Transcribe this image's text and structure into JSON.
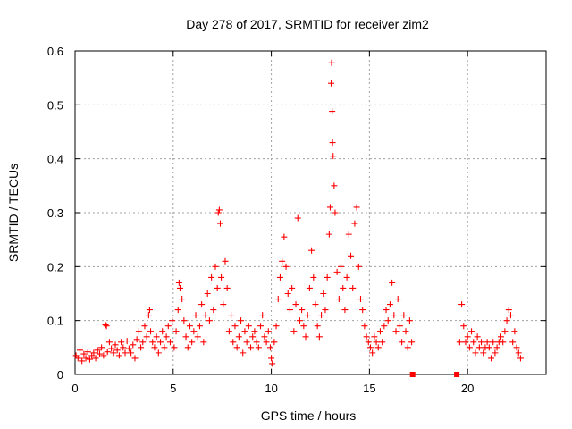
{
  "chart_data": {
    "type": "scatter",
    "title": "Day 278 of 2017, SRMTID for receiver zim2",
    "xlabel": "GPS time / hours",
    "ylabel": "SRMTID / TECUs",
    "xlim": [
      0,
      24
    ],
    "ylim": [
      0,
      0.6
    ],
    "grid": true,
    "marker": "plus",
    "color": "#ff0000",
    "x_ticks": [
      {
        "value": 0,
        "label": "0"
      },
      {
        "value": 5,
        "label": "5"
      },
      {
        "value": 10,
        "label": "10"
      },
      {
        "value": 15,
        "label": "15"
      },
      {
        "value": 20,
        "label": "20"
      }
    ],
    "y_ticks": [
      {
        "value": 0,
        "label": "0"
      },
      {
        "value": 0.1,
        "label": "0.1"
      },
      {
        "value": 0.2,
        "label": "0.2"
      },
      {
        "value": 0.3,
        "label": "0.3"
      },
      {
        "value": 0.4,
        "label": "0.4"
      },
      {
        "value": 0.5,
        "label": "0.5"
      },
      {
        "value": 0.6,
        "label": "0.6"
      }
    ],
    "series": [
      {
        "name": "SRMTID",
        "points": [
          [
            0.05,
            0.035
          ],
          [
            0.15,
            0.03
          ],
          [
            0.25,
            0.045
          ],
          [
            0.35,
            0.025
          ],
          [
            0.45,
            0.038
          ],
          [
            0.55,
            0.03
          ],
          [
            0.65,
            0.042
          ],
          [
            0.75,
            0.028
          ],
          [
            0.85,
            0.035
          ],
          [
            0.95,
            0.04
          ],
          [
            1.05,
            0.03
          ],
          [
            1.15,
            0.045
          ],
          [
            1.25,
            0.038
          ],
          [
            1.35,
            0.05
          ],
          [
            1.45,
            0.035
          ],
          [
            1.55,
            0.092
          ],
          [
            1.6,
            0.09
          ],
          [
            1.65,
            0.042
          ],
          [
            1.75,
            0.06
          ],
          [
            1.85,
            0.048
          ],
          [
            1.95,
            0.04
          ],
          [
            2.05,
            0.055
          ],
          [
            2.15,
            0.045
          ],
          [
            2.25,
            0.035
          ],
          [
            2.35,
            0.06
          ],
          [
            2.45,
            0.05
          ],
          [
            2.55,
            0.04
          ],
          [
            2.65,
            0.062
          ],
          [
            2.75,
            0.048
          ],
          [
            2.85,
            0.04
          ],
          [
            2.95,
            0.055
          ],
          [
            3.05,
            0.03
          ],
          [
            3.15,
            0.065
          ],
          [
            3.25,
            0.08
          ],
          [
            3.35,
            0.05
          ],
          [
            3.45,
            0.06
          ],
          [
            3.55,
            0.09
          ],
          [
            3.65,
            0.07
          ],
          [
            3.75,
            0.11
          ],
          [
            3.8,
            0.12
          ],
          [
            3.85,
            0.08
          ],
          [
            3.95,
            0.06
          ],
          [
            4.05,
            0.05
          ],
          [
            4.15,
            0.07
          ],
          [
            4.25,
            0.04
          ],
          [
            4.35,
            0.06
          ],
          [
            4.45,
            0.08
          ],
          [
            4.55,
            0.05
          ],
          [
            4.65,
            0.07
          ],
          [
            4.75,
            0.09
          ],
          [
            4.85,
            0.06
          ],
          [
            4.95,
            0.1
          ],
          [
            5.05,
            0.05
          ],
          [
            5.15,
            0.08
          ],
          [
            5.25,
            0.12
          ],
          [
            5.3,
            0.17
          ],
          [
            5.35,
            0.16
          ],
          [
            5.45,
            0.14
          ],
          [
            5.55,
            0.1
          ],
          [
            5.65,
            0.07
          ],
          [
            5.75,
            0.05
          ],
          [
            5.85,
            0.09
          ],
          [
            5.95,
            0.06
          ],
          [
            6.05,
            0.08
          ],
          [
            6.15,
            0.11
          ],
          [
            6.25,
            0.07
          ],
          [
            6.35,
            0.09
          ],
          [
            6.45,
            0.13
          ],
          [
            6.55,
            0.06
          ],
          [
            6.65,
            0.11
          ],
          [
            6.75,
            0.15
          ],
          [
            6.85,
            0.1
          ],
          [
            6.95,
            0.18
          ],
          [
            7.05,
            0.12
          ],
          [
            7.15,
            0.2
          ],
          [
            7.25,
            0.16
          ],
          [
            7.3,
            0.3
          ],
          [
            7.35,
            0.305
          ],
          [
            7.4,
            0.28
          ],
          [
            7.45,
            0.18
          ],
          [
            7.55,
            0.13
          ],
          [
            7.65,
            0.21
          ],
          [
            7.75,
            0.16
          ],
          [
            7.85,
            0.08
          ],
          [
            7.95,
            0.11
          ],
          [
            8.05,
            0.06
          ],
          [
            8.15,
            0.09
          ],
          [
            8.25,
            0.05
          ],
          [
            8.35,
            0.07
          ],
          [
            8.45,
            0.1
          ],
          [
            8.55,
            0.04
          ],
          [
            8.65,
            0.08
          ],
          [
            8.75,
            0.06
          ],
          [
            8.85,
            0.09
          ],
          [
            8.95,
            0.05
          ],
          [
            9.05,
            0.07
          ],
          [
            9.15,
            0.08
          ],
          [
            9.25,
            0.06
          ],
          [
            9.35,
            0.05
          ],
          [
            9.45,
            0.09
          ],
          [
            9.55,
            0.11
          ],
          [
            9.65,
            0.07
          ],
          [
            9.75,
            0.06
          ],
          [
            9.85,
            0.08
          ],
          [
            9.95,
            0.05
          ],
          [
            10.0,
            0.03
          ],
          [
            10.05,
            0.02
          ],
          [
            10.15,
            0.06
          ],
          [
            10.25,
            0.09
          ],
          [
            10.35,
            0.14
          ],
          [
            10.45,
            0.18
          ],
          [
            10.55,
            0.21
          ],
          [
            10.65,
            0.255
          ],
          [
            10.75,
            0.2
          ],
          [
            10.85,
            0.15
          ],
          [
            10.95,
            0.12
          ],
          [
            11.05,
            0.16
          ],
          [
            11.15,
            0.08
          ],
          [
            11.25,
            0.13
          ],
          [
            11.35,
            0.29
          ],
          [
            11.45,
            0.1
          ],
          [
            11.55,
            0.12
          ],
          [
            11.65,
            0.09
          ],
          [
            11.75,
            0.07
          ],
          [
            11.85,
            0.11
          ],
          [
            11.95,
            0.16
          ],
          [
            12.05,
            0.23
          ],
          [
            12.15,
            0.18
          ],
          [
            12.25,
            0.13
          ],
          [
            12.35,
            0.09
          ],
          [
            12.45,
            0.07
          ],
          [
            12.55,
            0.11
          ],
          [
            12.65,
            0.15
          ],
          [
            12.75,
            0.12
          ],
          [
            12.85,
            0.18
          ],
          [
            12.95,
            0.26
          ],
          [
            13.0,
            0.31
          ],
          [
            13.05,
            0.54
          ],
          [
            13.07,
            0.578
          ],
          [
            13.1,
            0.488
          ],
          [
            13.12,
            0.43
          ],
          [
            13.15,
            0.405
          ],
          [
            13.2,
            0.35
          ],
          [
            13.25,
            0.3
          ],
          [
            13.35,
            0.19
          ],
          [
            13.45,
            0.14
          ],
          [
            13.55,
            0.2
          ],
          [
            13.65,
            0.16
          ],
          [
            13.75,
            0.12
          ],
          [
            13.85,
            0.18
          ],
          [
            13.95,
            0.26
          ],
          [
            14.05,
            0.22
          ],
          [
            14.15,
            0.16
          ],
          [
            14.25,
            0.28
          ],
          [
            14.35,
            0.31
          ],
          [
            14.45,
            0.2
          ],
          [
            14.55,
            0.14
          ],
          [
            14.65,
            0.12
          ],
          [
            14.75,
            0.09
          ],
          [
            14.85,
            0.07
          ],
          [
            14.95,
            0.06
          ],
          [
            15.05,
            0.05
          ],
          [
            15.15,
            0.04
          ],
          [
            15.25,
            0.07
          ],
          [
            15.35,
            0.06
          ],
          [
            15.45,
            0.05
          ],
          [
            15.55,
            0.08
          ],
          [
            15.65,
            0.06
          ],
          [
            15.75,
            0.09
          ],
          [
            15.85,
            0.12
          ],
          [
            15.95,
            0.1
          ],
          [
            16.05,
            0.13
          ],
          [
            16.15,
            0.17
          ],
          [
            16.25,
            0.11
          ],
          [
            16.35,
            0.08
          ],
          [
            16.45,
            0.14
          ],
          [
            16.55,
            0.09
          ],
          [
            16.65,
            0.06
          ],
          [
            16.75,
            0.11
          ],
          [
            16.85,
            0.08
          ],
          [
            16.95,
            0.05
          ],
          [
            17.05,
            0.1
          ],
          [
            17.15,
            0.06
          ],
          [
            17.2,
            0.0
          ],
          [
            19.45,
            0.0
          ],
          [
            19.6,
            0.06
          ],
          [
            19.7,
            0.13
          ],
          [
            19.8,
            0.09
          ],
          [
            19.9,
            0.06
          ],
          [
            20.0,
            0.07
          ],
          [
            20.1,
            0.05
          ],
          [
            20.2,
            0.08
          ],
          [
            20.3,
            0.06
          ],
          [
            20.4,
            0.04
          ],
          [
            20.5,
            0.07
          ],
          [
            20.6,
            0.05
          ],
          [
            20.7,
            0.06
          ],
          [
            20.8,
            0.04
          ],
          [
            20.9,
            0.05
          ],
          [
            21.0,
            0.06
          ],
          [
            21.1,
            0.05
          ],
          [
            21.2,
            0.03
          ],
          [
            21.3,
            0.06
          ],
          [
            21.4,
            0.04
          ],
          [
            21.5,
            0.05
          ],
          [
            21.6,
            0.06
          ],
          [
            21.7,
            0.07
          ],
          [
            21.8,
            0.06
          ],
          [
            21.9,
            0.08
          ],
          [
            22.0,
            0.1
          ],
          [
            22.1,
            0.12
          ],
          [
            22.2,
            0.11
          ],
          [
            22.3,
            0.06
          ],
          [
            22.4,
            0.08
          ],
          [
            22.5,
            0.05
          ],
          [
            22.6,
            0.04
          ],
          [
            22.7,
            0.03
          ]
        ]
      }
    ]
  }
}
